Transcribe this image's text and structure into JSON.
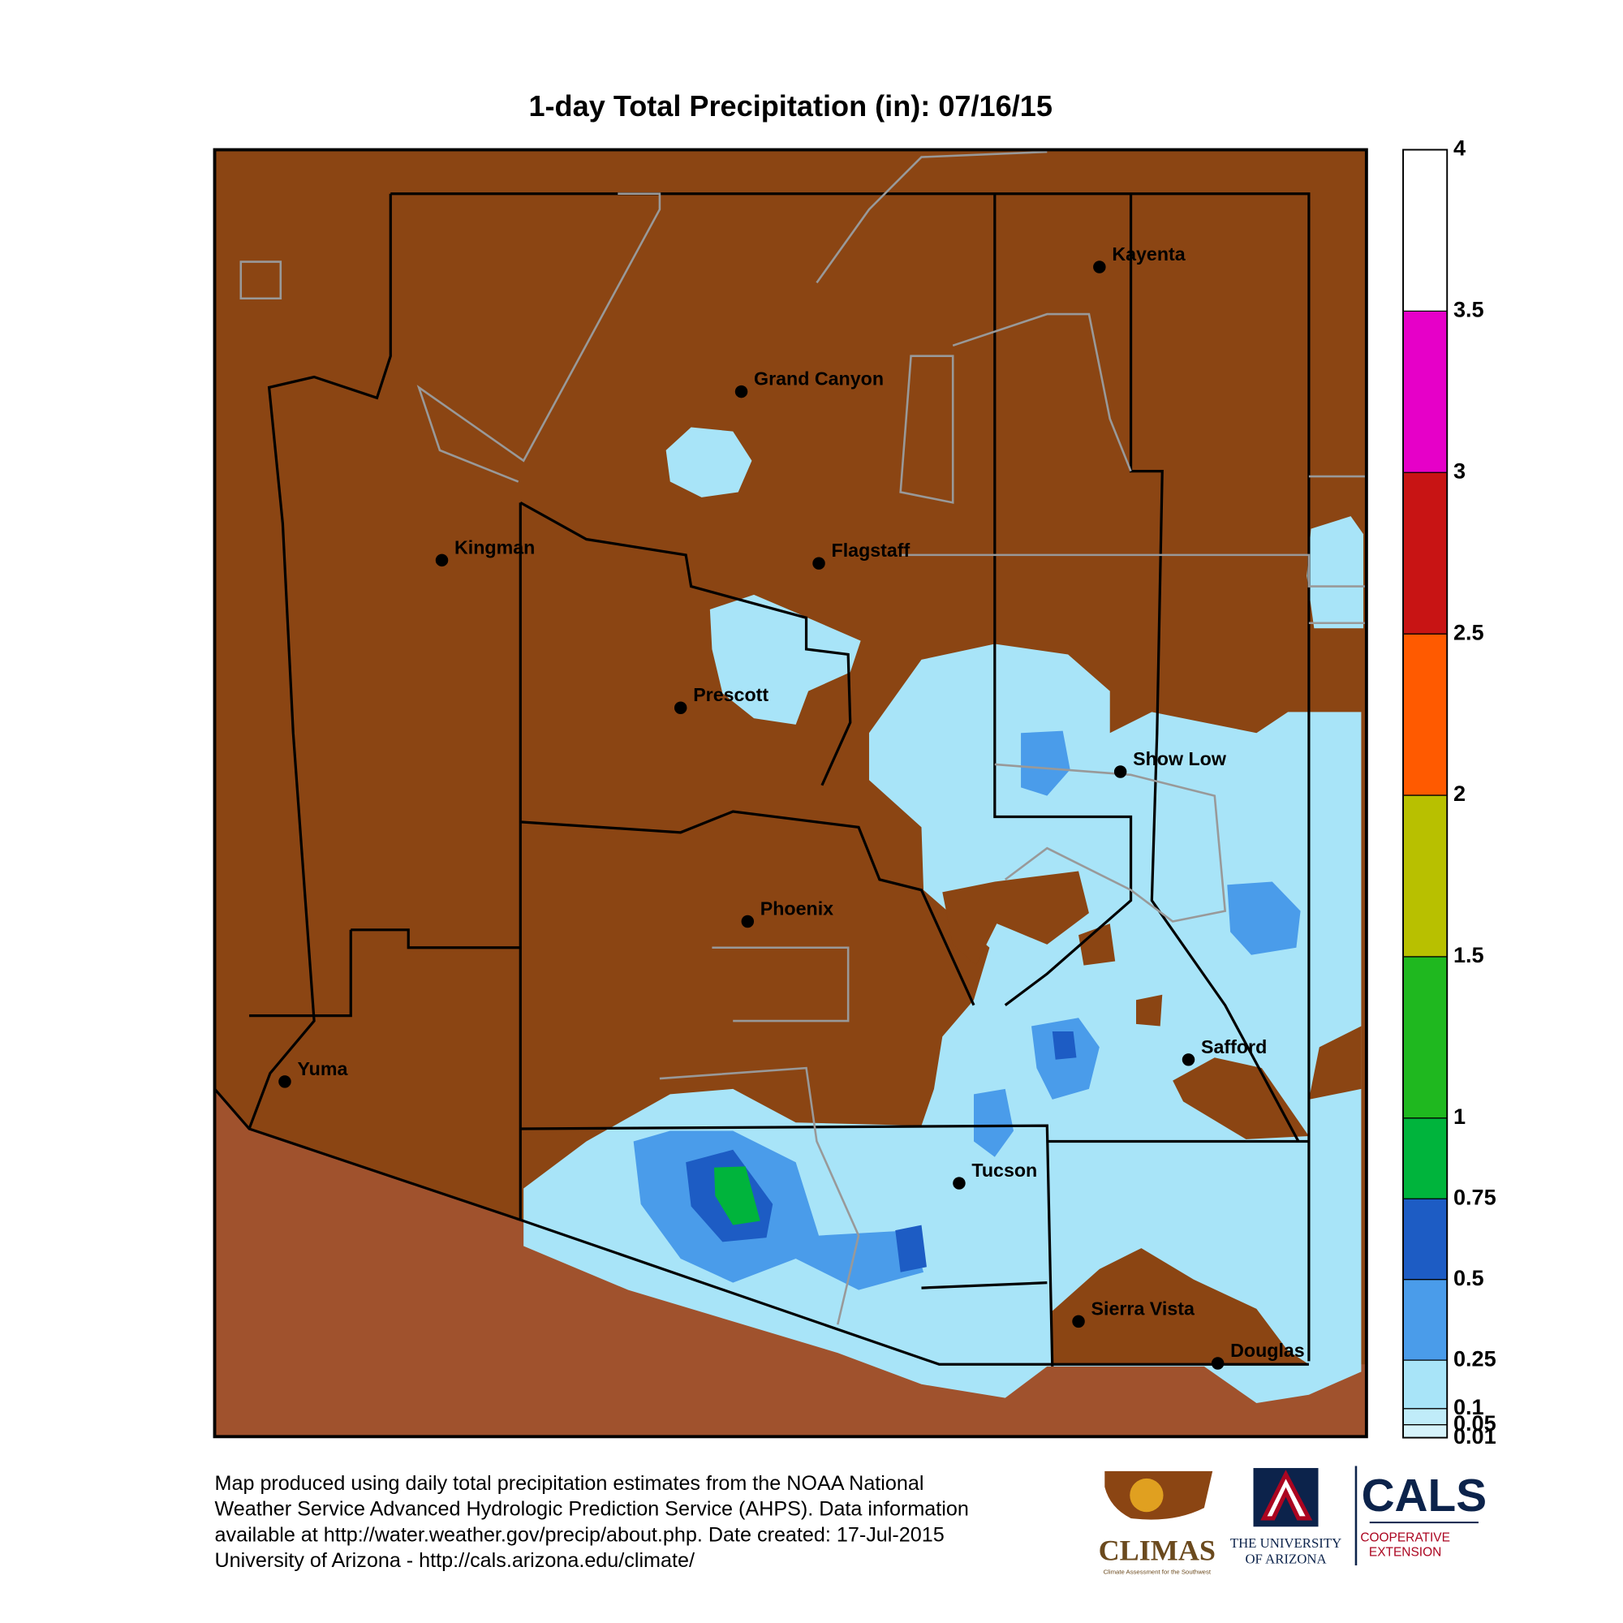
{
  "title": "1-day Total Precipitation (in): 07/16/15",
  "map": {
    "land_color": "#8b4513",
    "mexico_color": "#a0522d",
    "cities": [
      "Kayenta",
      "Grand Canyon",
      "Kingman",
      "Flagstaff",
      "Prescott",
      "Show Low",
      "Phoenix",
      "Safford",
      "Yuma",
      "Tucson",
      "Sierra Vista",
      "Douglas"
    ],
    "precip_areas": [
      0.15,
      0.15,
      0.15,
      0.15,
      0.3,
      0.3,
      0.3,
      0.3,
      0.3,
      0.6,
      0.6,
      0.6,
      0.8
    ]
  },
  "colorbar": {
    "ticks": [
      0.01,
      0.05,
      0.1,
      0.25,
      0.5,
      0.75,
      1,
      1.5,
      2,
      2.5,
      3,
      3.5,
      4
    ],
    "colors": [
      "#d6f3fb",
      "#c0ecf9",
      "#a8e4f8",
      "#4a9cea",
      "#1d5cc4",
      "#00b43c",
      "#1fb81f",
      "#b8c000",
      "#ff5a00",
      "#c81414",
      "#e600c8",
      "#ffffff"
    ]
  },
  "footer": {
    "lines": [
      "Map produced using daily total precipitation estimates from the NOAA National",
      "Weather Service Advanced Hydrologic Prediction Service (AHPS). Data information",
      "available at http://water.weather.gov/precip/about.php. Date created: 17-Jul-2015",
      "University of Arizona - http://cals.arizona.edu/climate/"
    ]
  },
  "logos": {
    "climas": "CLIMAS",
    "climas_tagline": "Climate Assessment for the Southwest",
    "ua_line1": "THE UNIVERSITY",
    "ua_line2": "OF ARIZONA",
    "cals": "CALS",
    "cals_line1": "COOPERATIVE",
    "cals_line2": "EXTENSION"
  }
}
